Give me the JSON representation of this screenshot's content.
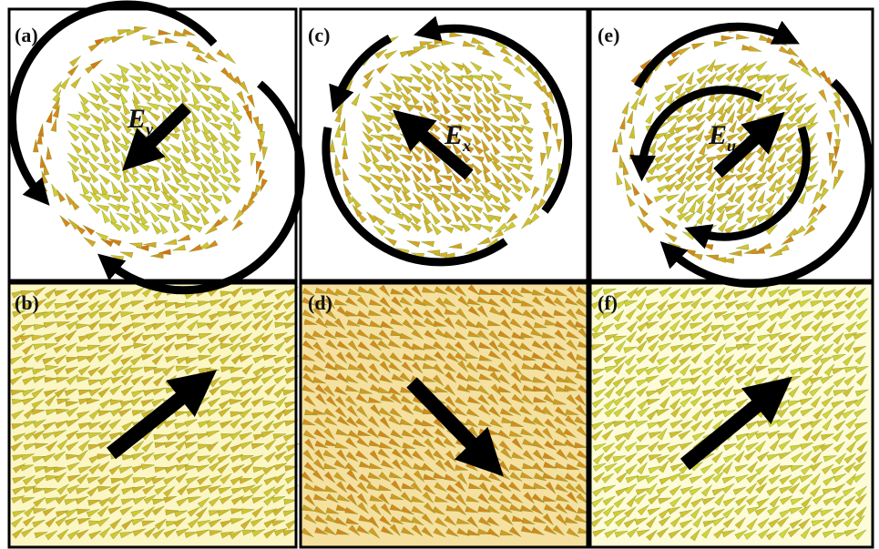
{
  "panels": [
    {
      "label": "(a)",
      "field": {
        "symbol": "E",
        "subscript": "y"
      }
    },
    {
      "label": "(b)"
    },
    {
      "label": "(c)",
      "field": {
        "symbol": "E",
        "subscript": "x"
      }
    },
    {
      "label": "(d)"
    },
    {
      "label": "(e)",
      "field": {
        "symbol": "E",
        "subscript": "u"
      }
    },
    {
      "label": "(f)"
    }
  ]
}
